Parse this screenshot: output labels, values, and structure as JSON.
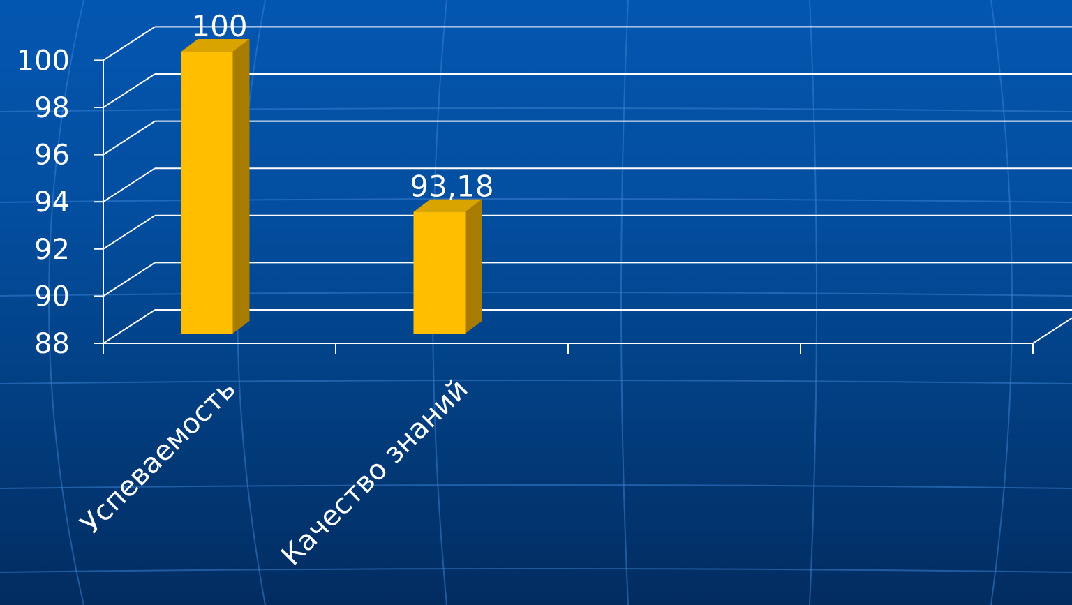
{
  "chart_data": {
    "type": "bar",
    "categories": [
      "Успеваемость",
      "Качество знаний"
    ],
    "values": [
      100,
      93.18
    ],
    "value_labels": [
      "100",
      "93,18"
    ],
    "ylim": [
      88,
      100
    ],
    "yticks": [
      "88",
      "90",
      "92",
      "94",
      "96",
      "98",
      "100"
    ],
    "grid": true,
    "legend": "none",
    "bar_color": "#ffbf00",
    "bar_side_color": "#a87c00",
    "bar_top_color": "#d9a300"
  }
}
